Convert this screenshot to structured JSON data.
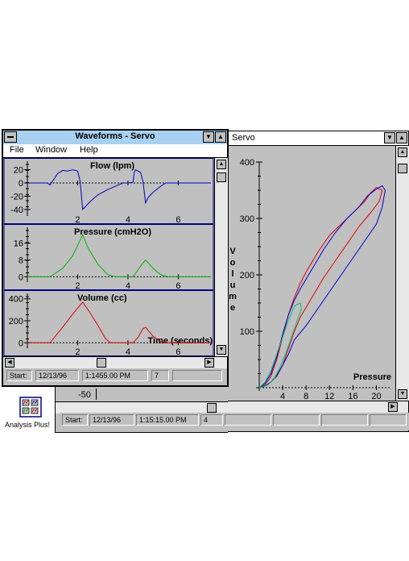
{
  "servo_window": {
    "title": "Servo",
    "ylabel_letters": [
      "V",
      "o",
      "l",
      "u",
      "m",
      "e"
    ],
    "xlabel": "Pressure",
    "y_ticks": [
      "400",
      "300",
      "200",
      "100"
    ],
    "x_ticks": [
      "4",
      "8",
      "12",
      "16",
      "20"
    ],
    "left_axis_tick": "-50",
    "status": {
      "start_label": "Start:",
      "date": "12/13/96",
      "time": "1:15:15.00 PM",
      "count": "4"
    }
  },
  "waveforms_window": {
    "title": "Waveforms - Servo",
    "menu": [
      "File",
      "Window",
      "Help"
    ],
    "status": {
      "start_label": "Start:",
      "date": "12/13/96",
      "time": "1:1455.00 PM",
      "count": "7"
    }
  },
  "chart_data": [
    {
      "type": "line",
      "title": "Flow (lpm)",
      "y_ticks": [
        "20",
        "0",
        "-20",
        "-40"
      ],
      "x_ticks": [
        "2",
        "4",
        "6"
      ],
      "ylim": [
        -45,
        28
      ],
      "xlim": [
        0,
        7.3
      ],
      "series": [
        {
          "color": "#0000c0",
          "x": [
            0,
            0.8,
            0.9,
            1.2,
            1.4,
            1.6,
            1.8,
            2.0,
            2.1,
            2.2,
            2.3,
            2.5,
            2.8,
            3.2,
            3.5,
            3.8,
            4.0,
            4.2,
            4.25,
            4.3,
            4.5,
            4.6,
            4.7,
            4.8,
            5.0,
            5.3,
            5.5,
            7.3
          ],
          "y": [
            0,
            0,
            -3,
            14,
            19,
            18,
            20,
            18,
            2,
            -40,
            -36,
            -28,
            -18,
            -10,
            -5,
            0,
            0,
            1,
            16,
            20,
            16,
            2,
            -30,
            -22,
            -14,
            -5,
            0,
            0
          ]
        }
      ]
    },
    {
      "type": "line",
      "title": "Pressure (cmH2O)",
      "y_ticks": [
        "16",
        "8",
        "0"
      ],
      "x_ticks": [
        "2",
        "4",
        "6"
      ],
      "ylim": [
        -1,
        22
      ],
      "xlim": [
        0,
        7.3
      ],
      "series": [
        {
          "color": "#00b000",
          "x": [
            0,
            0.9,
            1.4,
            1.8,
            2.2,
            2.4,
            2.8,
            3.2,
            3.5,
            4.2,
            4.5,
            4.7,
            5.0,
            5.3,
            5.6,
            7.3
          ],
          "y": [
            0,
            0,
            4,
            10,
            20,
            14,
            6,
            1,
            0,
            0,
            5,
            8,
            4,
            1,
            0,
            0
          ]
        }
      ]
    },
    {
      "type": "line",
      "title": "Volume (cc)",
      "xlabel": "Time (seconds)",
      "y_ticks": [
        "400",
        "200",
        "0"
      ],
      "x_ticks": [
        "2",
        "4",
        "6"
      ],
      "ylim": [
        -20,
        420
      ],
      "xlim": [
        0,
        7.3
      ],
      "series": [
        {
          "color": "#e00000",
          "x": [
            0,
            0.9,
            1.4,
            1.8,
            2.2,
            2.5,
            2.8,
            3.1,
            3.3,
            4.2,
            4.4,
            4.6,
            4.7,
            5.0,
            5.3,
            5.6,
            7.3
          ],
          "y": [
            0,
            0,
            140,
            260,
            370,
            270,
            160,
            40,
            0,
            0,
            50,
            130,
            140,
            60,
            10,
            0,
            0
          ]
        }
      ]
    },
    {
      "type": "line",
      "title": "",
      "xlabel": "Pressure",
      "ylabel": "Volume",
      "xlim": [
        0,
        22
      ],
      "ylim": [
        0,
        400
      ],
      "x_ticks": [
        "4",
        "8",
        "12",
        "16",
        "20"
      ],
      "y_ticks": [
        "100",
        "200",
        "300",
        "400"
      ],
      "series": [
        {
          "color": "#e00000",
          "x": [
            0,
            1,
            2,
            3,
            4,
            5,
            6,
            7,
            8,
            10,
            12,
            14,
            16,
            18,
            19,
            20,
            21,
            20.5,
            19,
            17,
            15,
            13,
            11,
            9,
            7,
            6,
            5,
            4,
            3,
            2,
            1,
            0
          ],
          "y": [
            0,
            5,
            20,
            50,
            90,
            130,
            160,
            185,
            205,
            240,
            270,
            290,
            310,
            330,
            345,
            355,
            350,
            330,
            310,
            285,
            255,
            225,
            195,
            160,
            125,
            100,
            70,
            40,
            20,
            10,
            3,
            0
          ]
        },
        {
          "color": "#0000d0",
          "x": [
            0,
            1,
            2,
            3,
            4,
            5,
            6,
            7,
            9,
            11,
            13,
            15,
            17,
            18.5,
            20,
            21,
            21.5,
            21,
            20,
            18,
            16,
            14,
            12,
            10,
            8,
            6,
            5,
            4,
            3,
            2,
            1,
            0
          ],
          "y": [
            0,
            8,
            25,
            55,
            95,
            130,
            155,
            175,
            210,
            245,
            275,
            300,
            320,
            340,
            352,
            358,
            350,
            320,
            290,
            260,
            230,
            200,
            170,
            140,
            110,
            85,
            60,
            40,
            22,
            10,
            3,
            0
          ]
        },
        {
          "color": "#00c080",
          "x": [
            0,
            1,
            2,
            3,
            4,
            5,
            6,
            7,
            7.2,
            6.5,
            5.5,
            4.5,
            3.5,
            2.5,
            1.5,
            0.5,
            0
          ],
          "y": [
            0,
            10,
            30,
            60,
            90,
            120,
            145,
            150,
            140,
            120,
            90,
            60,
            35,
            15,
            5,
            1,
            0
          ]
        }
      ]
    }
  ],
  "desktop_icon": {
    "label": "Analysis Plus!"
  }
}
